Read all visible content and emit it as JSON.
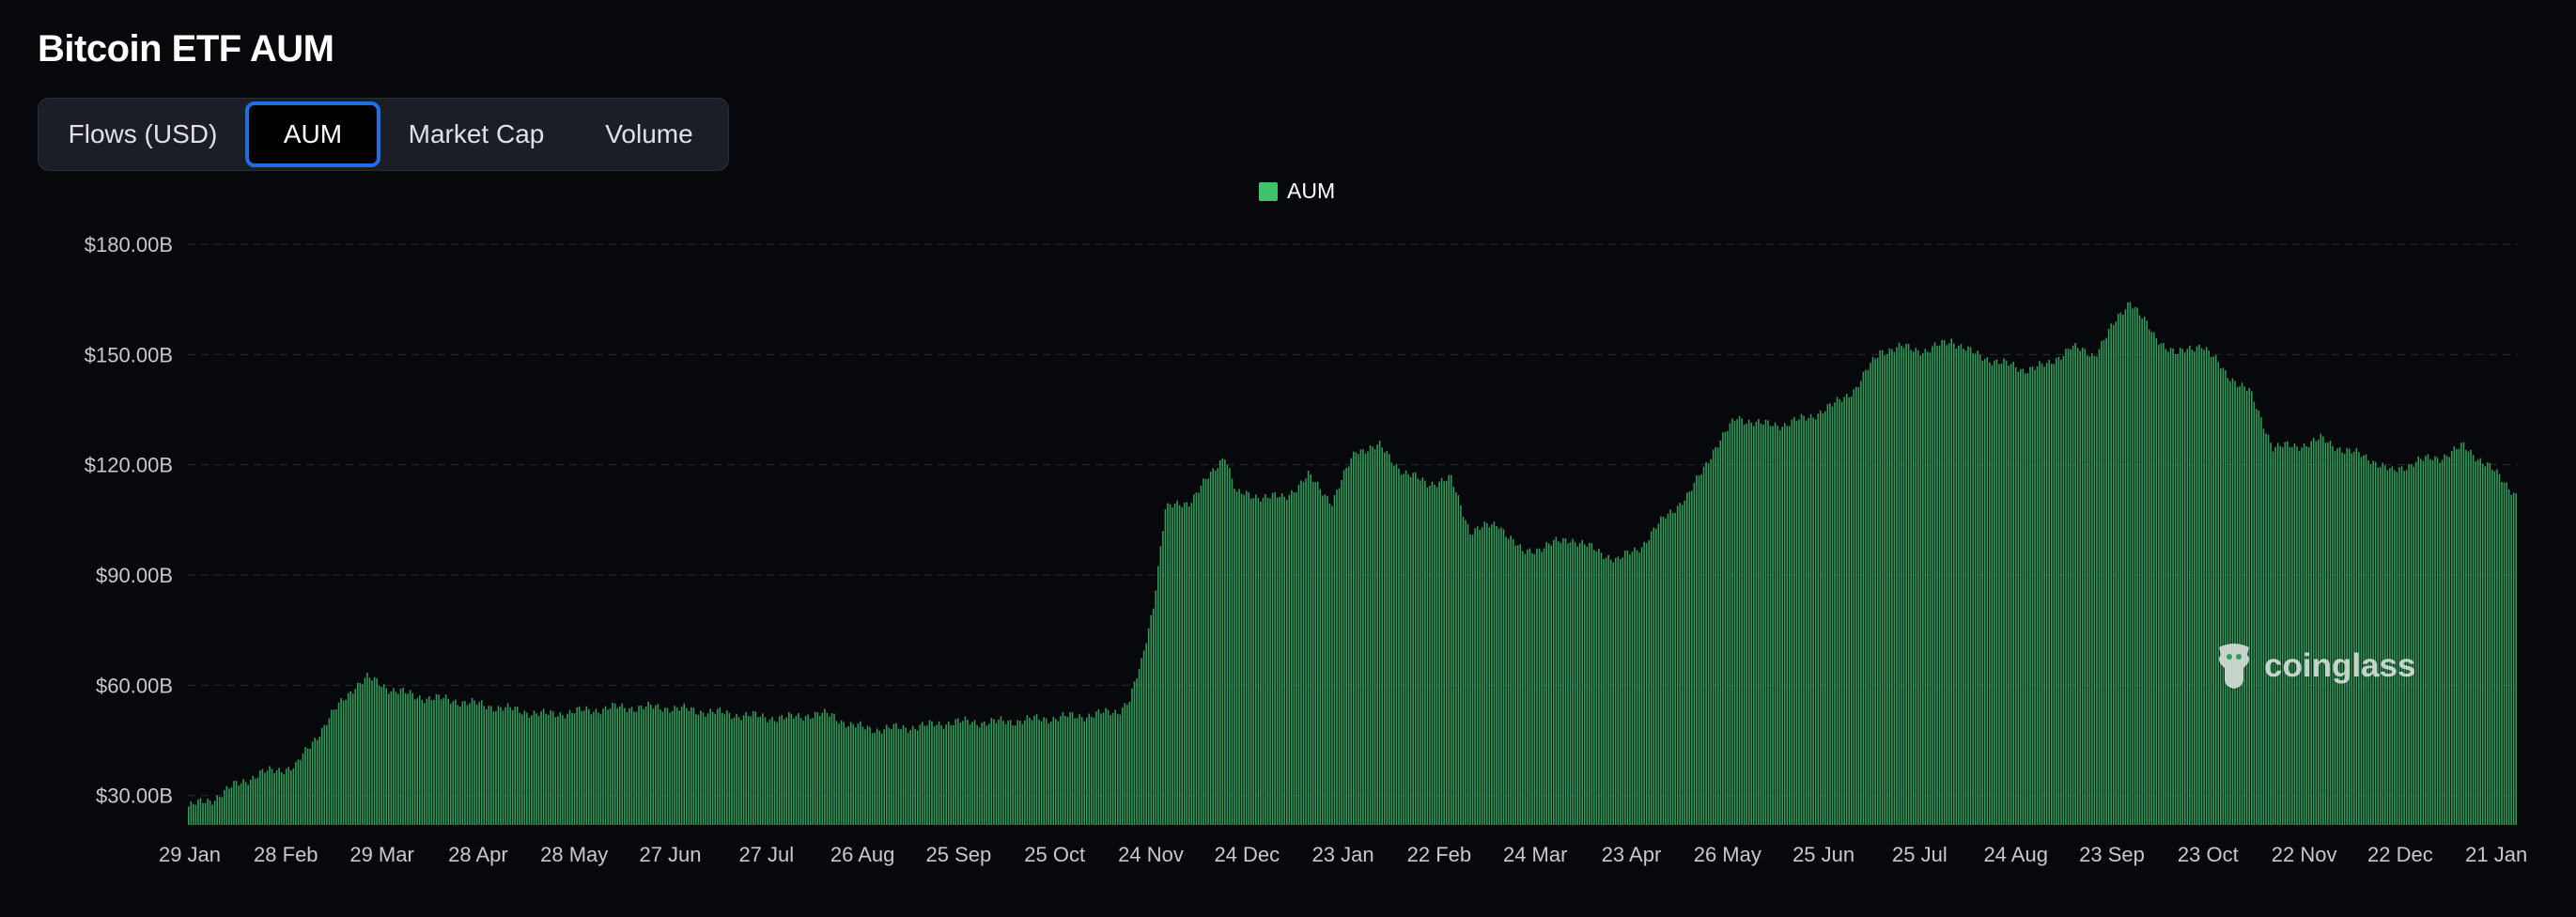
{
  "page": {
    "title": "Bitcoin ETF AUM"
  },
  "tabs": [
    {
      "label": "Flows (USD)",
      "active": false
    },
    {
      "label": "AUM",
      "active": true
    },
    {
      "label": "Market Cap",
      "active": false
    },
    {
      "label": "Volume",
      "active": false
    }
  ],
  "watermark": {
    "text": "coinglass"
  },
  "colors": {
    "bar": "#2f9e5b",
    "bar_edge": "#3ec36c",
    "grid": "#2a2d36",
    "axis_text": "#c7c9cf",
    "accent": "#1f6fe0"
  },
  "chart_data": {
    "type": "bar",
    "title": "",
    "xlabel": "",
    "ylabel": "",
    "legend": {
      "entries": [
        "AUM"
      ],
      "placement": "top-center"
    },
    "grid": true,
    "ylim": [
      22,
      180
    ],
    "y_ticks": [
      "$30.00B",
      "$60.00B",
      "$90.00B",
      "$120.00B",
      "$150.00B",
      "$180.00B"
    ],
    "y_tick_values": [
      30,
      60,
      90,
      120,
      150,
      180
    ],
    "x_ticks": [
      "29 Jan",
      "28 Feb",
      "29 Mar",
      "28 Apr",
      "28 May",
      "27 Jun",
      "27 Jul",
      "26 Aug",
      "25 Sep",
      "25 Oct",
      "24 Nov",
      "24 Dec",
      "23 Jan",
      "22 Feb",
      "24 Mar",
      "23 Apr",
      "26 May",
      "25 Jun",
      "25 Jul",
      "24 Aug",
      "23 Sep",
      "23 Oct",
      "22 Nov",
      "22 Dec",
      "21 Jan"
    ],
    "series": [
      {
        "name": "AUM",
        "unit": "USD billions",
        "points": [
          [
            0,
            27
          ],
          [
            10,
            29
          ],
          [
            20,
            33
          ],
          [
            30,
            36
          ],
          [
            45,
            38
          ],
          [
            60,
            52
          ],
          [
            70,
            60
          ],
          [
            75,
            62
          ],
          [
            85,
            59
          ],
          [
            95,
            57
          ],
          [
            110,
            56
          ],
          [
            130,
            54
          ],
          [
            150,
            52
          ],
          [
            180,
            54
          ],
          [
            200,
            54
          ],
          [
            230,
            52
          ],
          [
            250,
            51
          ],
          [
            260,
            52
          ],
          [
            270,
            52
          ],
          [
            278,
            49
          ],
          [
            290,
            48
          ],
          [
            310,
            49
          ],
          [
            320,
            50
          ],
          [
            340,
            50
          ],
          [
            360,
            51
          ],
          [
            380,
            52
          ],
          [
            390,
            53
          ],
          [
            395,
            56
          ],
          [
            400,
            66
          ],
          [
            405,
            82
          ],
          [
            410,
            108
          ],
          [
            420,
            110
          ],
          [
            430,
            118
          ],
          [
            435,
            123
          ],
          [
            440,
            112
          ],
          [
            460,
            111
          ],
          [
            470,
            117
          ],
          [
            480,
            110
          ],
          [
            490,
            124
          ],
          [
            500,
            125
          ],
          [
            510,
            118
          ],
          [
            520,
            115
          ],
          [
            530,
            116
          ],
          [
            538,
            102
          ],
          [
            550,
            104
          ],
          [
            560,
            96
          ],
          [
            570,
            98
          ],
          [
            580,
            100
          ],
          [
            590,
            97
          ],
          [
            600,
            94
          ],
          [
            610,
            98
          ],
          [
            620,
            106
          ],
          [
            630,
            112
          ],
          [
            640,
            124
          ],
          [
            650,
            133
          ],
          [
            660,
            131
          ],
          [
            670,
            131
          ],
          [
            680,
            133
          ],
          [
            690,
            136
          ],
          [
            700,
            141
          ],
          [
            710,
            151
          ],
          [
            720,
            152
          ],
          [
            730,
            151
          ],
          [
            740,
            154
          ],
          [
            750,
            150
          ],
          [
            760,
            148
          ],
          [
            770,
            146
          ],
          [
            780,
            147
          ],
          [
            790,
            152
          ],
          [
            800,
            150
          ],
          [
            810,
            160
          ],
          [
            815,
            165
          ],
          [
            825,
            155
          ],
          [
            835,
            150
          ],
          [
            845,
            153
          ],
          [
            855,
            145
          ],
          [
            865,
            140
          ],
          [
            875,
            125
          ],
          [
            885,
            125
          ],
          [
            895,
            127
          ],
          [
            905,
            124
          ],
          [
            915,
            122
          ],
          [
            925,
            118
          ],
          [
            935,
            121
          ],
          [
            945,
            122
          ],
          [
            955,
            125
          ],
          [
            965,
            120
          ],
          [
            977,
            112
          ]
        ]
      }
    ]
  }
}
